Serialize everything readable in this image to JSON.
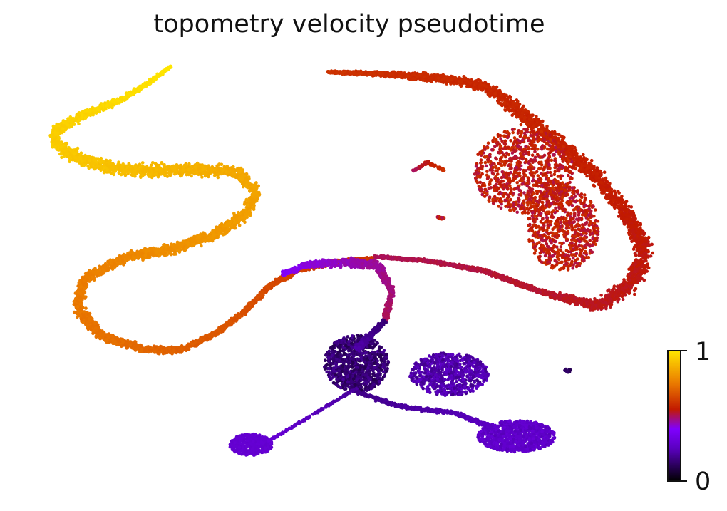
{
  "chart_data": {
    "type": "scatter",
    "title": "topometry velocity pseudotime",
    "xlabel": "",
    "ylabel": "",
    "axes_visible": false,
    "grid": false,
    "colormap": "gnuplot",
    "colormap_stops": [
      "#000000",
      "#5a00c0",
      "#8000ff",
      "#c21a00",
      "#ea7a00",
      "#ffe600"
    ],
    "color_range": [
      0,
      1
    ],
    "colorbar": {
      "position": "bottom-right",
      "ticks": [
        "0",
        "1"
      ]
    },
    "series": [
      {
        "pseudotime_range": [
          0.1,
          0.3
        ]
      },
      {
        "pseudotime_range": [
          0.5,
          0.6
        ]
      },
      {
        "pseudotime_range": [
          0.6,
          0.85
        ]
      },
      {
        "pseudotime_range": [
          0.85,
          1.0
        ]
      }
    ]
  }
}
